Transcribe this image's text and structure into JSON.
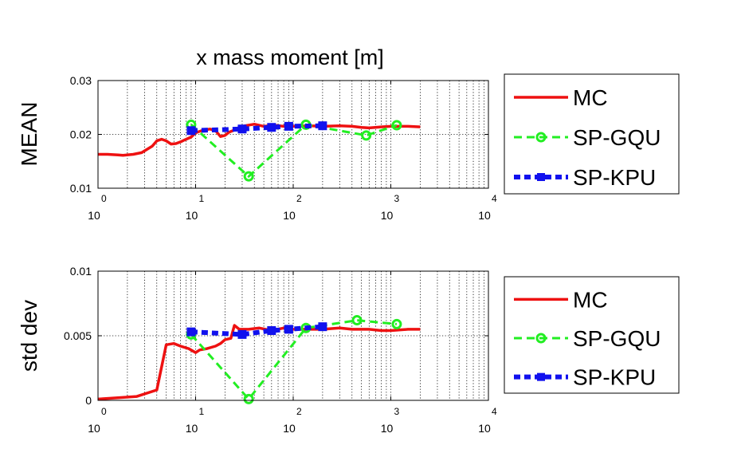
{
  "figure": {
    "title": "x mass moment [m]"
  },
  "chart_data": [
    {
      "type": "line",
      "ylabel": "MEAN",
      "xscale": "log",
      "xlim": [
        1,
        10000
      ],
      "ylim": [
        0.01,
        0.03
      ],
      "yticks": [
        {
          "value": 0.01,
          "label": "0.01"
        },
        {
          "value": 0.02,
          "label": "0.02"
        },
        {
          "value": 0.03,
          "label": "0.03"
        }
      ],
      "xticks": [
        {
          "value": 1,
          "base": "10",
          "exp": "0"
        },
        {
          "value": 10,
          "base": "10",
          "exp": "1"
        },
        {
          "value": 100,
          "base": "10",
          "exp": "2"
        },
        {
          "value": 1000,
          "base": "10",
          "exp": "3"
        },
        {
          "value": 10000,
          "base": "10",
          "exp": "4"
        }
      ],
      "grid": true,
      "legend_position": "outside-right",
      "series": [
        {
          "name": "MC",
          "color": "#ee1111",
          "style": "solid",
          "marker": "none",
          "points": [
            [
              1,
              0.0163
            ],
            [
              1.25,
              0.0163
            ],
            [
              1.6,
              0.0162
            ],
            [
              1.8,
              0.0161
            ],
            [
              2.3,
              0.0163
            ],
            [
              2.8,
              0.0166
            ],
            [
              3.6,
              0.0178
            ],
            [
              4.0,
              0.0188
            ],
            [
              4.5,
              0.0191
            ],
            [
              5.0,
              0.0188
            ],
            [
              5.6,
              0.0182
            ],
            [
              6.3,
              0.0183
            ],
            [
              7.0,
              0.0186
            ],
            [
              8.0,
              0.0191
            ],
            [
              9.0,
              0.0195
            ],
            [
              10,
              0.0203
            ],
            [
              12,
              0.0208
            ],
            [
              14,
              0.021
            ],
            [
              16,
              0.0207
            ],
            [
              18,
              0.0196
            ],
            [
              20,
              0.0198
            ],
            [
              22,
              0.0204
            ],
            [
              25,
              0.0208
            ],
            [
              28,
              0.0213
            ],
            [
              32,
              0.0216
            ],
            [
              40,
              0.0219
            ],
            [
              50,
              0.0215
            ],
            [
              63,
              0.0217
            ],
            [
              80,
              0.0215
            ],
            [
              100,
              0.0215
            ],
            [
              150,
              0.0216
            ],
            [
              200,
              0.0215
            ],
            [
              300,
              0.0216
            ],
            [
              400,
              0.0215
            ],
            [
              500,
              0.0213
            ],
            [
              600,
              0.0212
            ],
            [
              800,
              0.0214
            ],
            [
              1000,
              0.0215
            ],
            [
              1500,
              0.0215
            ],
            [
              2000,
              0.0214
            ]
          ]
        },
        {
          "name": "SP-GQU",
          "color": "#22ee22",
          "style": "dashed",
          "marker": "circle",
          "points": [
            [
              9,
              0.0218
            ],
            [
              35,
              0.0122
            ],
            [
              135,
              0.0218
            ],
            [
              560,
              0.0198
            ],
            [
              1150,
              0.0217
            ]
          ]
        },
        {
          "name": "SP-KPU",
          "color": "#1111ee",
          "style": "dotted",
          "marker": "square",
          "points": [
            [
              9,
              0.0207
            ],
            [
              30,
              0.021
            ],
            [
              60,
              0.0213
            ],
            [
              90,
              0.0215
            ],
            [
              200,
              0.0216
            ]
          ]
        }
      ]
    },
    {
      "type": "line",
      "ylabel": "std dev",
      "xscale": "log",
      "xlim": [
        1,
        10000
      ],
      "ylim": [
        0,
        0.01
      ],
      "yticks": [
        {
          "value": 0,
          "label": "0"
        },
        {
          "value": 0.005,
          "label": "0.005"
        },
        {
          "value": 0.01,
          "label": "0.01"
        }
      ],
      "xticks": [
        {
          "value": 1,
          "base": "10",
          "exp": "0"
        },
        {
          "value": 10,
          "base": "10",
          "exp": "1"
        },
        {
          "value": 100,
          "base": "10",
          "exp": "2"
        },
        {
          "value": 1000,
          "base": "10",
          "exp": "3"
        },
        {
          "value": 10000,
          "base": "10",
          "exp": "4"
        }
      ],
      "grid": true,
      "legend_position": "outside-right",
      "series": [
        {
          "name": "MC",
          "color": "#ee1111",
          "style": "solid",
          "marker": "none",
          "points": [
            [
              1,
              0.0001
            ],
            [
              1.6,
              0.0002
            ],
            [
              2.5,
              0.0003
            ],
            [
              4.0,
              0.0008
            ],
            [
              5.0,
              0.0043
            ],
            [
              6.0,
              0.0044
            ],
            [
              7.0,
              0.0042
            ],
            [
              8.5,
              0.004
            ],
            [
              10,
              0.0037
            ],
            [
              11,
              0.0039
            ],
            [
              13,
              0.004
            ],
            [
              16,
              0.0042
            ],
            [
              18,
              0.0044
            ],
            [
              20,
              0.0047
            ],
            [
              23,
              0.0048
            ],
            [
              25,
              0.0058
            ],
            [
              28,
              0.0055
            ],
            [
              35,
              0.0055
            ],
            [
              45,
              0.0056
            ],
            [
              60,
              0.0054
            ],
            [
              80,
              0.0056
            ],
            [
              100,
              0.0055
            ],
            [
              150,
              0.0055
            ],
            [
              200,
              0.0055
            ],
            [
              300,
              0.0056
            ],
            [
              400,
              0.0055
            ],
            [
              600,
              0.0055
            ],
            [
              800,
              0.0054
            ],
            [
              1000,
              0.0054
            ],
            [
              1500,
              0.0055
            ],
            [
              2000,
              0.0055
            ]
          ]
        },
        {
          "name": "SP-GQU",
          "color": "#22ee22",
          "style": "dashed",
          "marker": "circle",
          "points": [
            [
              9,
              0.0051
            ],
            [
              35,
              0.0001
            ],
            [
              135,
              0.0056
            ],
            [
              450,
              0.0062
            ],
            [
              1150,
              0.0059
            ]
          ]
        },
        {
          "name": "SP-KPU",
          "color": "#1111ee",
          "style": "dotted",
          "marker": "square",
          "points": [
            [
              9,
              0.0053
            ],
            [
              30,
              0.0051
            ],
            [
              60,
              0.0054
            ],
            [
              90,
              0.0055
            ],
            [
              200,
              0.0057
            ]
          ]
        }
      ]
    }
  ]
}
